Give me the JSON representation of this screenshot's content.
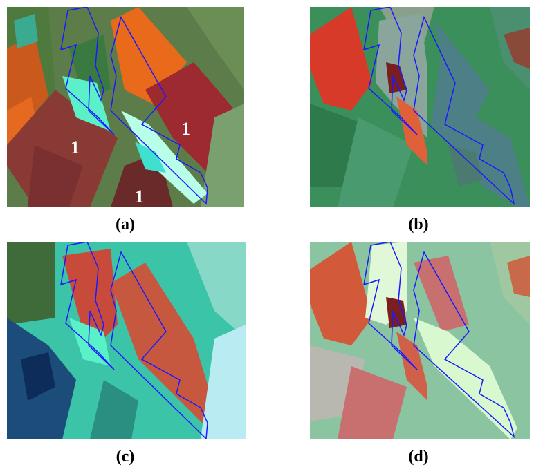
{
  "captions": {
    "a": "(a)",
    "b": "(b)",
    "c": "(c)",
    "d": "(d)"
  },
  "panel_a_labels": {
    "left_field": "1",
    "right_field": "1",
    "bottom_field": "1"
  },
  "colors": {
    "polygon_outline": "#1a1aff"
  }
}
